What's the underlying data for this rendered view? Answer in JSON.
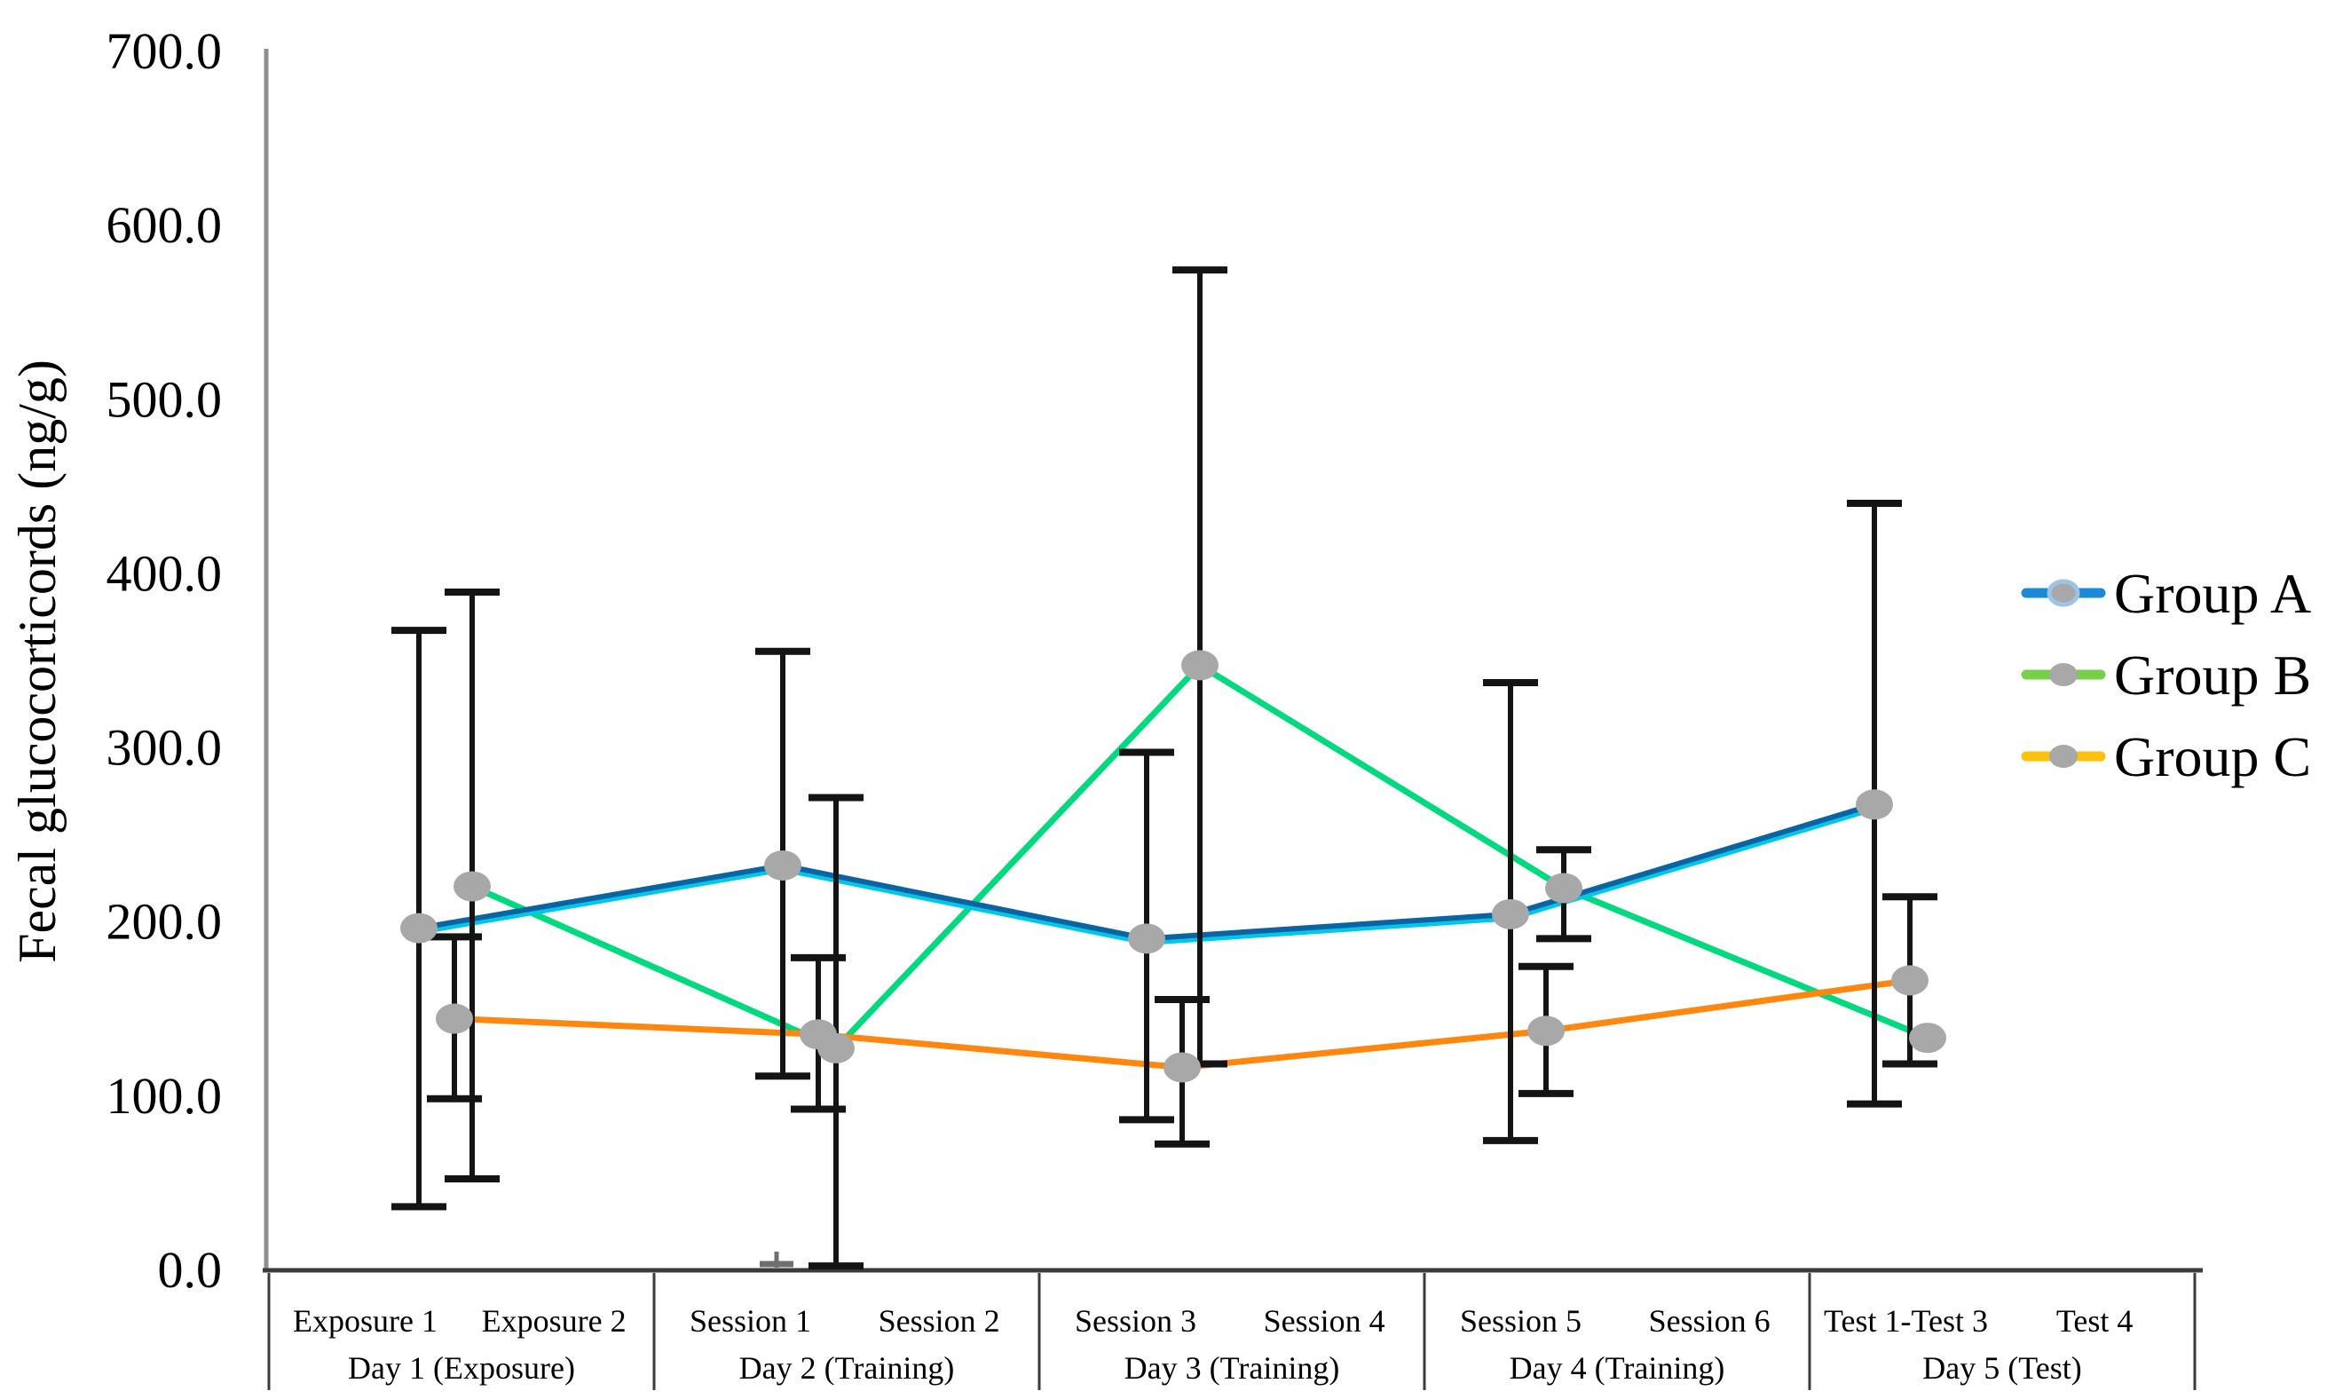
{
  "figure": {
    "background": "#ffffff"
  },
  "chart_data": {
    "type": "line",
    "title": "",
    "ylabel": "Fecal glucocorticords (ng/g)",
    "xlabel": "",
    "ylim": [
      0,
      700
    ],
    "ytick_step": 100,
    "ytick_labels": [
      "0.0",
      "100.0",
      "200.0",
      "300.0",
      "400.0",
      "500.0",
      "600.0",
      "700.0"
    ],
    "grid": false,
    "legend_position": "right",
    "x_groups": [
      {
        "day_label": "Day 1 (Exposure)",
        "sublabels": [
          "Exposure 1",
          "Exposure 2"
        ]
      },
      {
        "day_label": "Day 2 (Training)",
        "sublabels": [
          "Session 1",
          "Session 2"
        ]
      },
      {
        "day_label": "Day 3 (Training)",
        "sublabels": [
          "Session 3",
          "Session 4"
        ]
      },
      {
        "day_label": "Day 4 (Training)",
        "sublabels": [
          "Session 5",
          "Session 6"
        ]
      },
      {
        "day_label": "Day 5 (Test)",
        "sublabels": [
          "Test 1-Test 3",
          "Test 4"
        ]
      }
    ],
    "series": [
      {
        "name": "Group A",
        "line_color": "#0a64a4",
        "glow_color": "#00c6e8",
        "legend_color": "#1b8ad6",
        "values": [
          196,
          232,
          190,
          204,
          267
        ],
        "err_low": [
          36,
          111,
          86,
          74,
          95
        ],
        "err_high": [
          367,
          355,
          297,
          337,
          440
        ]
      },
      {
        "name": "Group B",
        "line_color": "#00d97e",
        "glow_color": null,
        "legend_color": "#76d14a",
        "values": [
          220,
          127,
          347,
          219,
          133
        ],
        "err_low": [
          52,
          2,
          118,
          190,
          null
        ],
        "err_high": [
          389,
          271,
          574,
          241,
          null
        ]
      },
      {
        "name": "Group C",
        "line_color": "#ff870f",
        "glow_color": null,
        "legend_color": "#fec00f",
        "values": [
          144,
          135,
          116,
          137,
          166
        ],
        "err_low": [
          98,
          92,
          72,
          101,
          118
        ],
        "err_high": [
          191,
          179,
          155,
          174,
          214
        ]
      }
    ],
    "marker_color": "#a8a8a8",
    "marker_ring_color": "#9dc3e6",
    "error_bar_color": "#141414",
    "axis_color": "#8f8f8f",
    "table_line_color": "#3b3b3b"
  }
}
